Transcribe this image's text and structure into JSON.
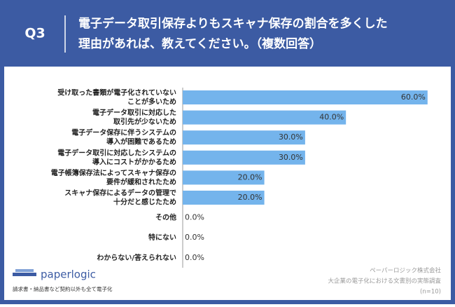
{
  "chart_data": {
    "type": "bar",
    "orientation": "horizontal",
    "question": "Q3",
    "title": [
      "電子データ取引保存よりもスキャナ保存の割合を多くした",
      "理由があれば、教えてください。（複数回答）"
    ],
    "categories": [
      "受け取った書類が電子化されていない\nことが多いため",
      "電子データ取引に対応した\n取引先が少ないため",
      "電子データ保存に伴うシステムの\n導入が困難であるため",
      "電子データ取引に対応したシステムの\n導入にコストがかかるため",
      "電子帳簿保存法によってスキャナ保存の\n要件が緩和されたため",
      "スキャナ保存によるデータの管理で\n十分だと感じたため",
      "その他",
      "特にない",
      "わからない/答えられない"
    ],
    "values": [
      60,
      40,
      30,
      30,
      20,
      20,
      0,
      0,
      0
    ],
    "value_labels": [
      "60.0%",
      "40.0%",
      "30.0%",
      "30.0%",
      "20.0%",
      "20.0%",
      "0.0%",
      "0.0%",
      "0.0%"
    ],
    "color": "#74b4ec",
    "brand": {
      "name": "paperlogic",
      "tagline": "請求書・納品書など契約以外も全て電子化"
    },
    "source": [
      "ペーパーロジック株式会社",
      "大企業の電子化における文書別の実態調査",
      "(n=10)"
    ]
  }
}
